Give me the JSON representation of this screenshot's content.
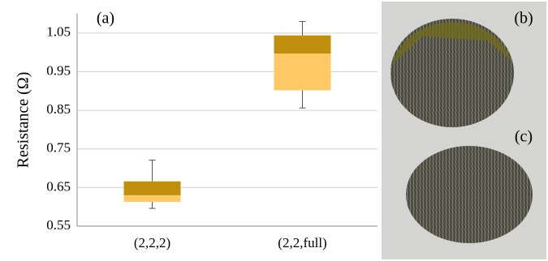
{
  "chart_data": {
    "type": "box",
    "annotation": "(a)",
    "ylabel": "Resistance (Ω)",
    "categories": [
      "(2,2,2)",
      "(2,2,full)"
    ],
    "boxes": [
      {
        "whislo": 0.596,
        "q1": 0.613,
        "med": 0.63,
        "q3": 0.666,
        "whishi": 0.721
      },
      {
        "whislo": 0.856,
        "q1": 0.902,
        "med": 0.997,
        "q3": 1.044,
        "whishi": 1.08
      }
    ],
    "upper_color": "#c08f0c",
    "lower_color": "#ffc966",
    "ylim": [
      0.55,
      1.1
    ],
    "yticks": [
      0.55,
      0.65,
      0.75,
      0.85,
      0.95,
      1.05
    ],
    "grid": true
  },
  "photo_labels": [
    "(b)",
    "(c)"
  ]
}
